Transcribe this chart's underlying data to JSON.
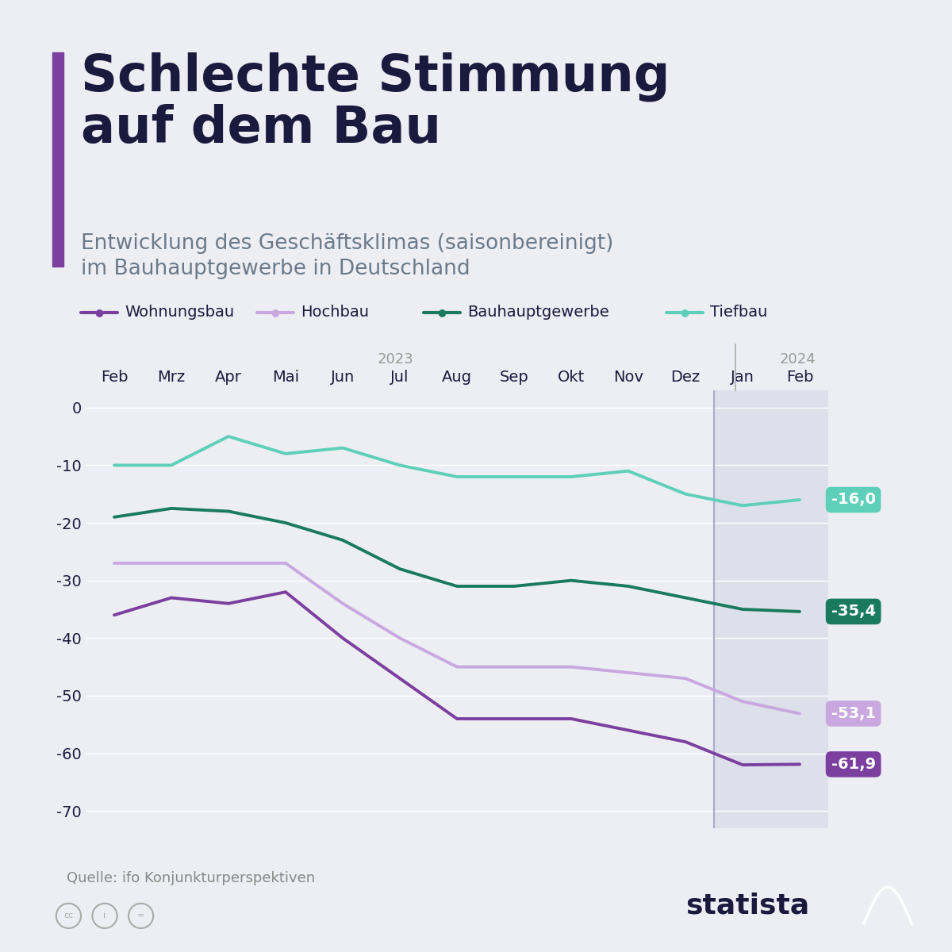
{
  "title_main": "Schlechte Stimmung\nauf dem Bau",
  "title_sub": "Entwicklung des Geschäftsklimas (saisonbereinigt)\nim Bauhauptgewerbe in Deutschland",
  "source": "Quelle: ifo Konjunkturperspektiven",
  "months": [
    "Feb",
    "Mrz",
    "Apr",
    "Mai",
    "Jun",
    "Jul",
    "Aug",
    "Sep",
    "Okt",
    "Nov",
    "Dez",
    "Jan",
    "Feb"
  ],
  "year_2023_label": "2023",
  "year_2024_label": "2024",
  "year_divider_index": 11,
  "series": {
    "Wohnungsbau": {
      "color": "#7B3FA0",
      "values": [
        -36,
        -33,
        -34,
        -32,
        -40,
        -47,
        -54,
        -54,
        -54,
        -56,
        -58,
        -62,
        -61.9
      ],
      "label_value": "-61,9"
    },
    "Hochbau": {
      "color": "#C9A8E0",
      "values": [
        -27,
        -27,
        -27,
        -27,
        -34,
        -40,
        -45,
        -45,
        -45,
        -46,
        -47,
        -51,
        -53.1
      ],
      "label_value": "-53,1"
    },
    "Bauhauptgewerbe": {
      "color": "#1A7A5E",
      "values": [
        -19,
        -17.5,
        -18,
        -20,
        -23,
        -28,
        -31,
        -31,
        -30,
        -31,
        -33,
        -35,
        -35.4
      ],
      "label_value": "-35,4"
    },
    "Tiefbau": {
      "color": "#5ECFB8",
      "values": [
        -10,
        -10,
        -5,
        -8,
        -7,
        -10,
        -12,
        -12,
        -12,
        -11,
        -15,
        -17,
        -16.0
      ],
      "label_value": "-16,0"
    }
  },
  "series_order": [
    "Wohnungsbau",
    "Hochbau",
    "Bauhauptgewerbe",
    "Tiefbau"
  ],
  "legend_order": [
    "Wohnungsbau",
    "Hochbau",
    "Bauhauptgewerbe",
    "Tiefbau"
  ],
  "ylim": [
    -73,
    3
  ],
  "yticks": [
    0,
    -10,
    -20,
    -30,
    -40,
    -50,
    -60,
    -70
  ],
  "background_color": "#EDEEF3",
  "plot_bg_color": "#EDEEF3",
  "shade_color": "#DDE0EA",
  "title_color": "#1A1A3E",
  "subtitle_color": "#6A7A8A",
  "accent_bar_color": "#7B3FA0",
  "grid_color": "#FFFFFF",
  "divider_color": "#AAAACC"
}
